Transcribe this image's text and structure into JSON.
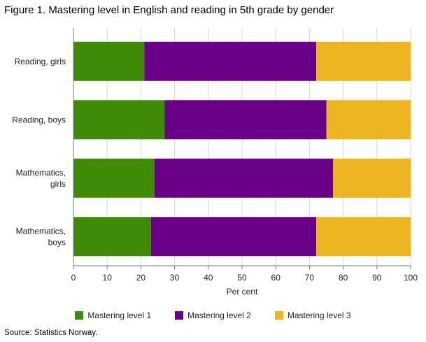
{
  "figure_title": "Figure 1. Mastering level in English and reading in 5th grade by  gender",
  "source": "Source: Statistics Norway.",
  "colors": {
    "level1": "#3f8a07",
    "level2": "#6a0087",
    "level3": "#ecb521",
    "grid": "#d7d7d7",
    "axis": "#7a7a7a"
  },
  "chart_data": {
    "type": "bar",
    "orientation": "horizontal",
    "stacked": true,
    "title": "Figure 1. Mastering level in English and reading in 5th grade by  gender",
    "xlabel": "Per cent",
    "ylabel": "",
    "xlim": [
      0,
      100
    ],
    "xticks": [
      "0",
      "10",
      "20",
      "30",
      "40",
      "50",
      "60",
      "70",
      "80",
      "90",
      "100"
    ],
    "categories": [
      "Reading, girls",
      "Reading, boys",
      "Mathematics,\ngirls",
      "Mathematics,\nboys"
    ],
    "series": [
      {
        "name": "Mastering level 1",
        "values": [
          21,
          27,
          24,
          23
        ]
      },
      {
        "name": "Mastering level 2",
        "values": [
          51,
          48,
          53,
          49
        ]
      },
      {
        "name": "Mastering level 3",
        "values": [
          28,
          25,
          23,
          28
        ]
      }
    ],
    "legend_position": "bottom",
    "grid": "vertical"
  }
}
